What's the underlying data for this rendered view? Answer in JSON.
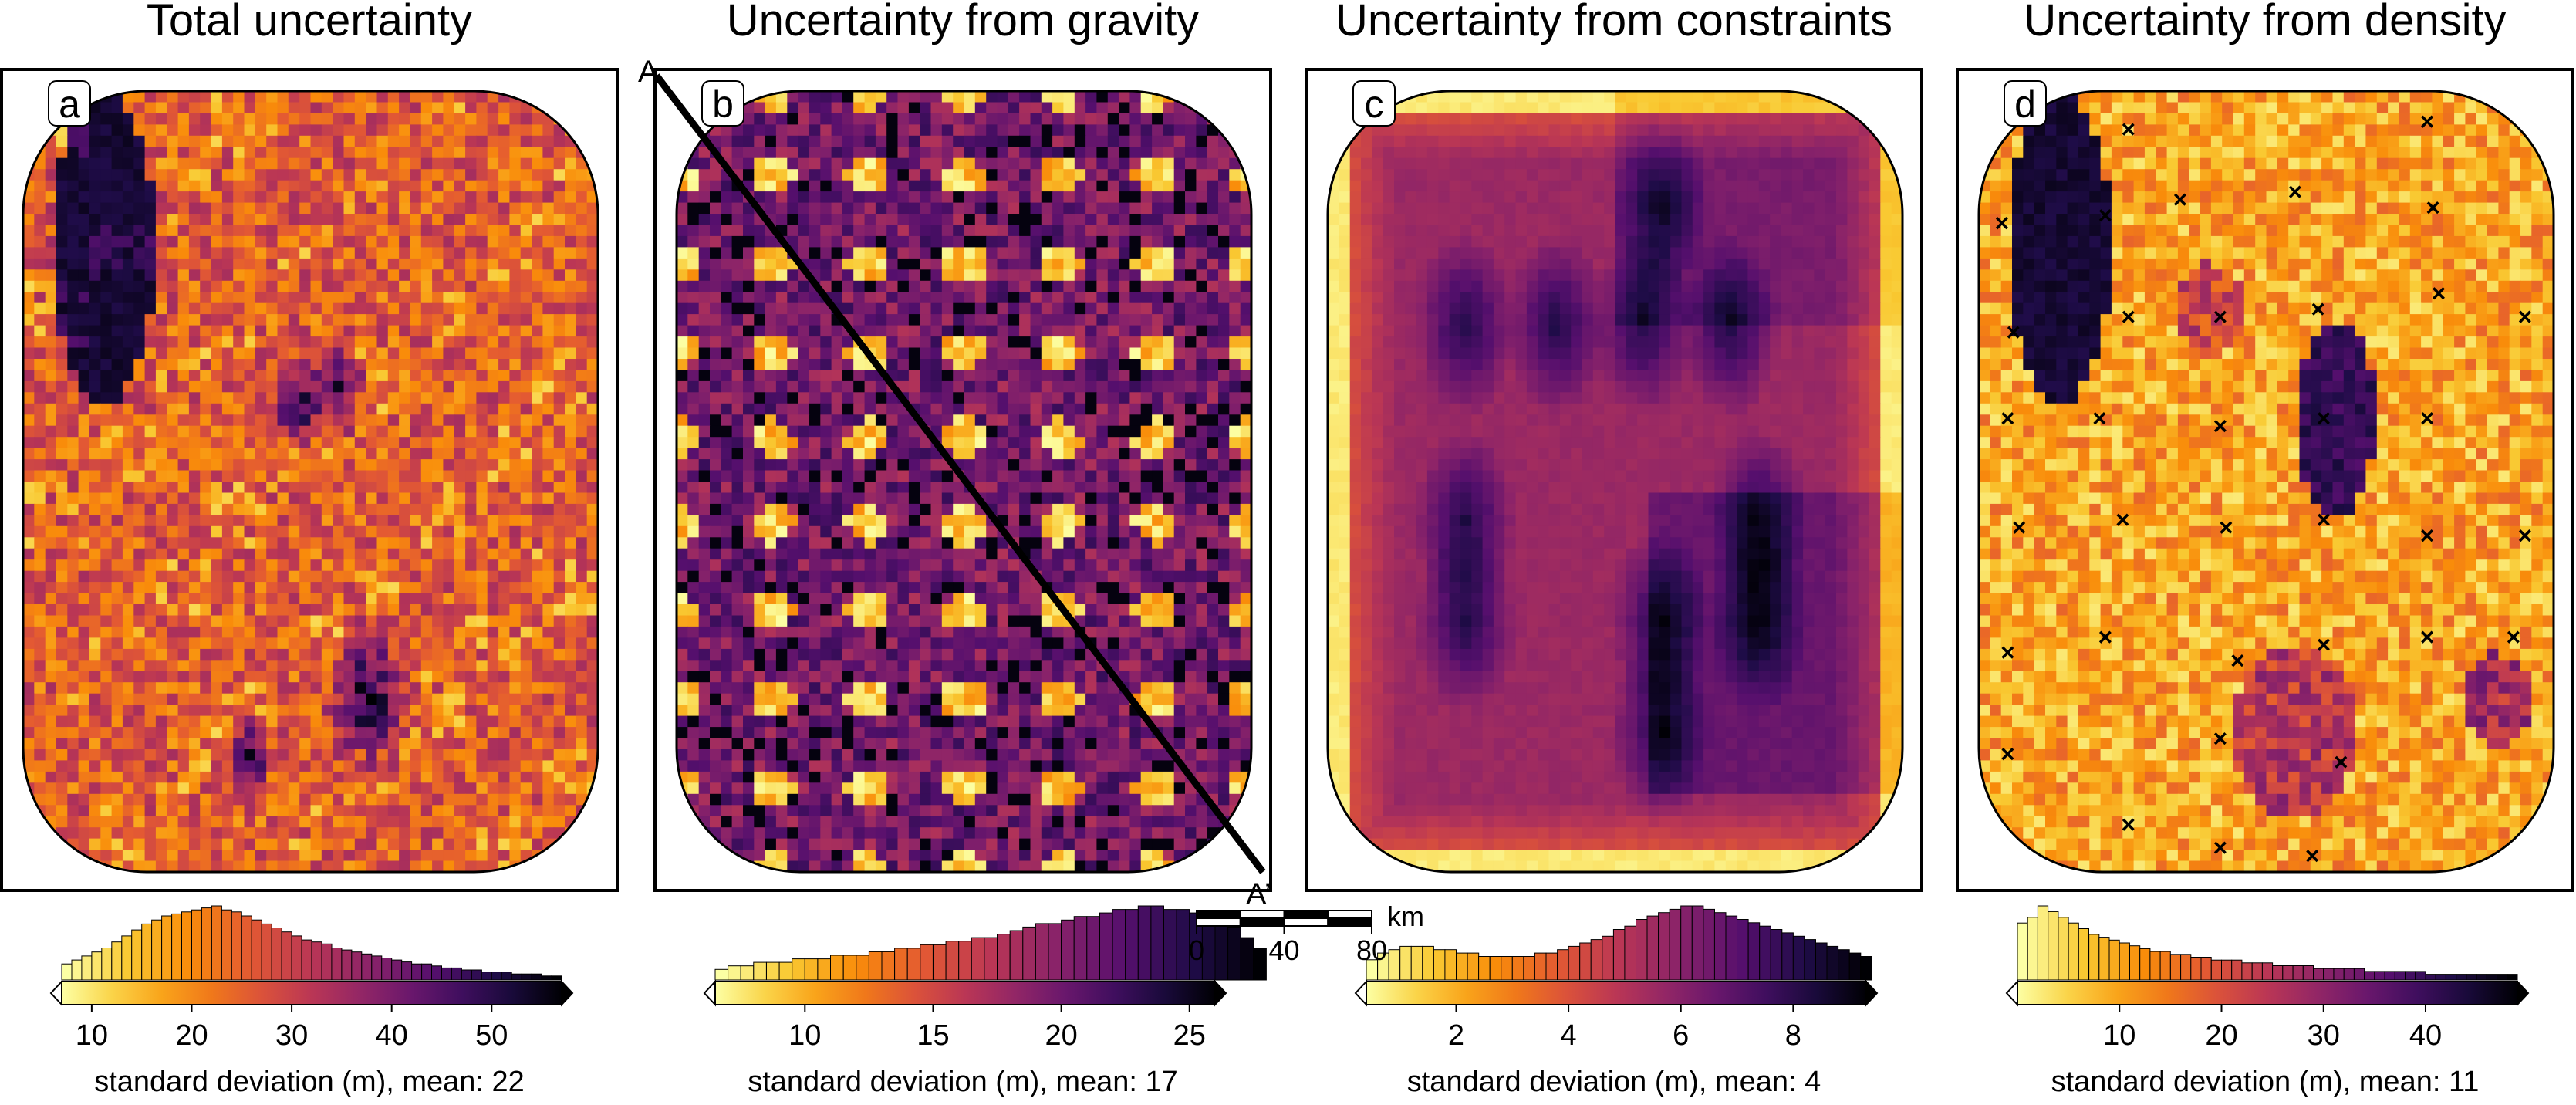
{
  "figure": {
    "scale_bar": {
      "ticks": [
        "0",
        "40",
        "80"
      ],
      "unit": "km"
    },
    "profile": {
      "start_label": "A",
      "end_label": "A’"
    }
  },
  "chart_data": [
    {
      "type": "heatmap",
      "panel_label": "a",
      "title": "Total uncertainty",
      "colormap": "inferno (reversed: light = low, dark = high)",
      "histogram": {
        "xlabel": "standard deviation (m), mean: 22",
        "xlim": [
          7,
          57
        ],
        "ticks": [
          10,
          20,
          30,
          40,
          50
        ],
        "bin_width": 1,
        "counts": [
          8,
          10,
          12,
          14,
          16,
          19,
          22,
          25,
          28,
          30,
          32,
          33,
          34,
          35,
          36,
          37,
          35,
          34,
          32,
          30,
          28,
          26,
          24,
          22,
          20,
          19,
          18,
          16,
          15,
          14,
          13,
          12,
          11,
          10,
          9,
          8,
          8,
          7,
          6,
          6,
          5,
          5,
          4,
          4,
          4,
          3,
          3,
          3,
          2,
          2
        ]
      },
      "features": {
        "low_spots": [
          [
            0.18,
            0.22
          ],
          [
            0.62,
            0.3
          ],
          [
            0.35,
            0.6
          ],
          [
            0.75,
            0.75
          ],
          [
            0.45,
            0.85
          ]
        ],
        "high_blobs": [
          [
            0.14,
            0.2,
            0.1
          ],
          [
            0.55,
            0.38,
            0.05
          ],
          [
            0.48,
            0.4,
            0.05
          ],
          [
            0.6,
            0.78,
            0.08
          ],
          [
            0.4,
            0.85,
            0.04
          ]
        ]
      }
    },
    {
      "type": "heatmap",
      "panel_label": "b",
      "title": "Uncertainty from gravity",
      "colormap": "inferno (reversed: light = low, dark = high)",
      "histogram": {
        "xlabel": "standard deviation (m), mean: 17",
        "xlim": [
          6.5,
          26
        ],
        "ticks": [
          10,
          15,
          20,
          25
        ],
        "bin_width": 0.5,
        "counts": [
          3,
          4,
          4,
          5,
          5,
          5,
          6,
          6,
          6,
          7,
          7,
          7,
          8,
          8,
          9,
          9,
          10,
          10,
          11,
          11,
          12,
          12,
          13,
          14,
          15,
          16,
          16,
          17,
          18,
          18,
          19,
          20,
          20,
          21,
          21,
          20,
          20,
          19,
          18,
          17,
          15,
          12,
          9
        ]
      },
      "features": {
        "low_spots_grid": {
          "rows": 9,
          "cols": 6
        }
      }
    },
    {
      "type": "heatmap",
      "panel_label": "c",
      "title": "Uncertainty from constraints",
      "colormap": "inferno (reversed: light = low, dark = high)",
      "histogram": {
        "xlabel": "standard deviation (m), mean: 4",
        "xlim": [
          0.4,
          9.3
        ],
        "ticks": [
          2,
          4,
          6,
          8
        ],
        "bin_width": 0.2,
        "counts": [
          6,
          8,
          9,
          10,
          10,
          10,
          9,
          9,
          8,
          8,
          7,
          7,
          7,
          7,
          7,
          8,
          8,
          9,
          10,
          11,
          12,
          13,
          15,
          16,
          18,
          19,
          20,
          21,
          22,
          22,
          21,
          20,
          19,
          18,
          17,
          16,
          15,
          14,
          13,
          12,
          11,
          10,
          9,
          8,
          7
        ]
      },
      "features": {
        "constraint_points": [
          [
            0.24,
            0.3
          ],
          [
            0.4,
            0.3
          ],
          [
            0.55,
            0.3
          ],
          [
            0.7,
            0.3
          ],
          [
            0.58,
            0.15
          ],
          [
            0.75,
            0.55
          ],
          [
            0.58,
            0.68
          ],
          [
            0.75,
            0.68
          ],
          [
            0.58,
            0.82
          ],
          [
            0.24,
            0.55
          ],
          [
            0.24,
            0.68
          ]
        ]
      }
    },
    {
      "type": "heatmap",
      "panel_label": "d",
      "title": "Uncertainty from density",
      "colormap": "inferno (reversed: light = low, dark = high)",
      "histogram": {
        "xlabel": "standard deviation (m), mean: 11",
        "xlim": [
          0,
          49
        ],
        "ticks": [
          10,
          20,
          30,
          40
        ],
        "bin_width": 1,
        "counts": [
          20,
          22,
          26,
          24,
          22,
          20,
          18,
          16,
          15,
          14,
          13,
          12,
          11,
          10,
          10,
          9,
          9,
          8,
          8,
          7,
          7,
          7,
          6,
          6,
          6,
          5,
          5,
          5,
          5,
          4,
          4,
          4,
          4,
          4,
          3,
          3,
          3,
          3,
          3,
          3,
          2,
          2,
          2,
          2,
          2,
          2,
          2,
          2,
          2
        ]
      },
      "markers": {
        "symbol": "×",
        "points": [
          [
            0.26,
            0.05
          ],
          [
            0.78,
            0.04
          ],
          [
            0.04,
            0.17
          ],
          [
            0.22,
            0.16
          ],
          [
            0.35,
            0.14
          ],
          [
            0.55,
            0.13
          ],
          [
            0.79,
            0.15
          ],
          [
            0.06,
            0.31
          ],
          [
            0.26,
            0.29
          ],
          [
            0.42,
            0.29
          ],
          [
            0.59,
            0.28
          ],
          [
            0.8,
            0.26
          ],
          [
            0.95,
            0.29
          ],
          [
            0.05,
            0.42
          ],
          [
            0.21,
            0.42
          ],
          [
            0.42,
            0.43
          ],
          [
            0.6,
            0.42
          ],
          [
            0.78,
            0.42
          ],
          [
            0.07,
            0.56
          ],
          [
            0.25,
            0.55
          ],
          [
            0.43,
            0.56
          ],
          [
            0.6,
            0.55
          ],
          [
            0.78,
            0.57
          ],
          [
            0.95,
            0.57
          ],
          [
            0.05,
            0.72
          ],
          [
            0.22,
            0.7
          ],
          [
            0.45,
            0.73
          ],
          [
            0.6,
            0.71
          ],
          [
            0.78,
            0.7
          ],
          [
            0.93,
            0.7
          ],
          [
            0.05,
            0.85
          ],
          [
            0.42,
            0.83
          ],
          [
            0.63,
            0.86
          ],
          [
            0.26,
            0.94
          ],
          [
            0.42,
            0.97
          ],
          [
            0.58,
            0.98
          ]
        ]
      }
    }
  ]
}
